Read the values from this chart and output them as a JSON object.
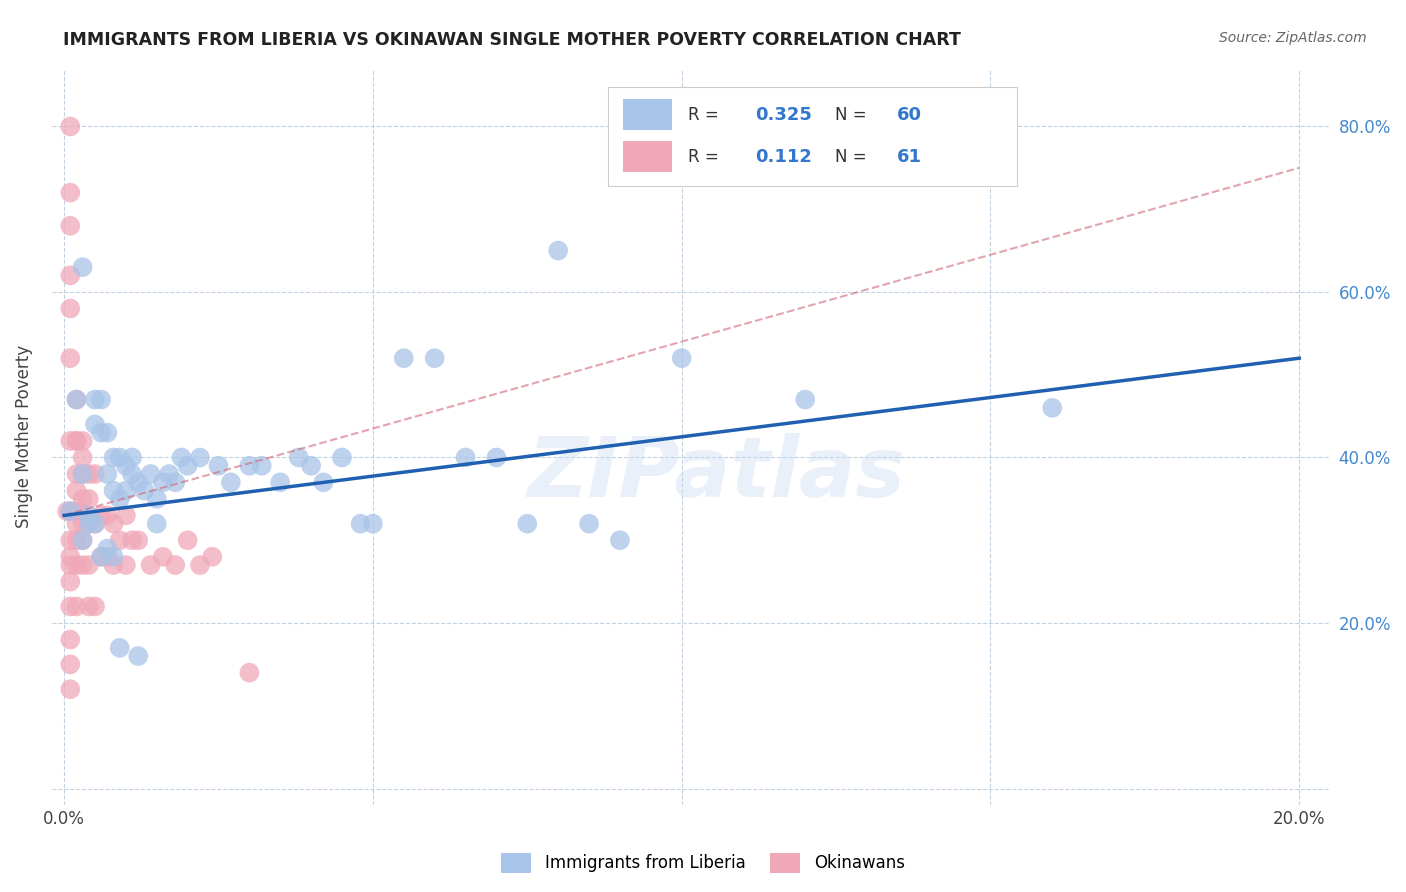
{
  "title": "IMMIGRANTS FROM LIBERIA VS OKINAWAN SINGLE MOTHER POVERTY CORRELATION CHART",
  "source": "Source: ZipAtlas.com",
  "ylabel": "Single Mother Poverty",
  "blue_R": 0.325,
  "blue_N": 60,
  "pink_R": 0.112,
  "pink_N": 61,
  "blue_color": "#a8c4e8",
  "pink_color": "#f0a8b8",
  "blue_line_color": "#2060b0",
  "pink_line_color": "#d06878",
  "watermark": "ZIPatlas",
  "legend_labels": [
    "Immigrants from Liberia",
    "Okinawans"
  ],
  "xlim": [
    -0.002,
    0.205
  ],
  "ylim": [
    -0.02,
    0.87
  ],
  "blue_line_x0": 0.0,
  "blue_line_y0": 0.33,
  "blue_line_x1": 0.2,
  "blue_line_y1": 0.52,
  "pink_line_x0": 0.0,
  "pink_line_y0": 0.33,
  "pink_line_x1": 0.2,
  "pink_line_y1": 0.75,
  "blue_x": [
    0.001,
    0.002,
    0.003,
    0.003,
    0.004,
    0.005,
    0.005,
    0.006,
    0.006,
    0.007,
    0.007,
    0.008,
    0.008,
    0.009,
    0.009,
    0.01,
    0.01,
    0.011,
    0.011,
    0.012,
    0.013,
    0.014,
    0.015,
    0.015,
    0.016,
    0.017,
    0.018,
    0.019,
    0.02,
    0.022,
    0.025,
    0.027,
    0.03,
    0.032,
    0.035,
    0.038,
    0.04,
    0.042,
    0.045,
    0.048,
    0.05,
    0.055,
    0.06,
    0.065,
    0.07,
    0.075,
    0.08,
    0.085,
    0.09,
    0.1,
    0.003,
    0.004,
    0.005,
    0.006,
    0.007,
    0.008,
    0.009,
    0.012,
    0.12,
    0.16
  ],
  "blue_y": [
    0.335,
    0.47,
    0.38,
    0.3,
    0.33,
    0.44,
    0.47,
    0.43,
    0.47,
    0.43,
    0.38,
    0.4,
    0.36,
    0.4,
    0.35,
    0.39,
    0.36,
    0.4,
    0.38,
    0.37,
    0.36,
    0.38,
    0.35,
    0.32,
    0.37,
    0.38,
    0.37,
    0.4,
    0.39,
    0.4,
    0.39,
    0.37,
    0.39,
    0.39,
    0.37,
    0.4,
    0.39,
    0.37,
    0.4,
    0.32,
    0.32,
    0.52,
    0.52,
    0.4,
    0.4,
    0.32,
    0.65,
    0.32,
    0.3,
    0.52,
    0.63,
    0.32,
    0.32,
    0.28,
    0.29,
    0.28,
    0.17,
    0.16,
    0.47,
    0.46
  ],
  "pink_x": [
    0.0005,
    0.001,
    0.001,
    0.001,
    0.001,
    0.001,
    0.001,
    0.001,
    0.001,
    0.001,
    0.001,
    0.001,
    0.0015,
    0.002,
    0.002,
    0.002,
    0.002,
    0.002,
    0.002,
    0.002,
    0.002,
    0.0025,
    0.003,
    0.003,
    0.003,
    0.003,
    0.003,
    0.003,
    0.004,
    0.004,
    0.004,
    0.004,
    0.004,
    0.005,
    0.005,
    0.005,
    0.006,
    0.006,
    0.007,
    0.007,
    0.008,
    0.008,
    0.009,
    0.01,
    0.01,
    0.011,
    0.012,
    0.014,
    0.016,
    0.018,
    0.02,
    0.022,
    0.024,
    0.001,
    0.001,
    0.001,
    0.001,
    0.001,
    0.002,
    0.003,
    0.03
  ],
  "pink_y": [
    0.335,
    0.335,
    0.3,
    0.28,
    0.27,
    0.25,
    0.22,
    0.18,
    0.15,
    0.12,
    0.42,
    0.52,
    0.335,
    0.42,
    0.38,
    0.36,
    0.32,
    0.3,
    0.27,
    0.22,
    0.42,
    0.335,
    0.38,
    0.35,
    0.32,
    0.3,
    0.27,
    0.42,
    0.38,
    0.35,
    0.32,
    0.27,
    0.22,
    0.38,
    0.32,
    0.22,
    0.33,
    0.28,
    0.33,
    0.28,
    0.32,
    0.27,
    0.3,
    0.33,
    0.27,
    0.3,
    0.3,
    0.27,
    0.28,
    0.27,
    0.3,
    0.27,
    0.28,
    0.58,
    0.62,
    0.68,
    0.72,
    0.8,
    0.47,
    0.4,
    0.14
  ]
}
